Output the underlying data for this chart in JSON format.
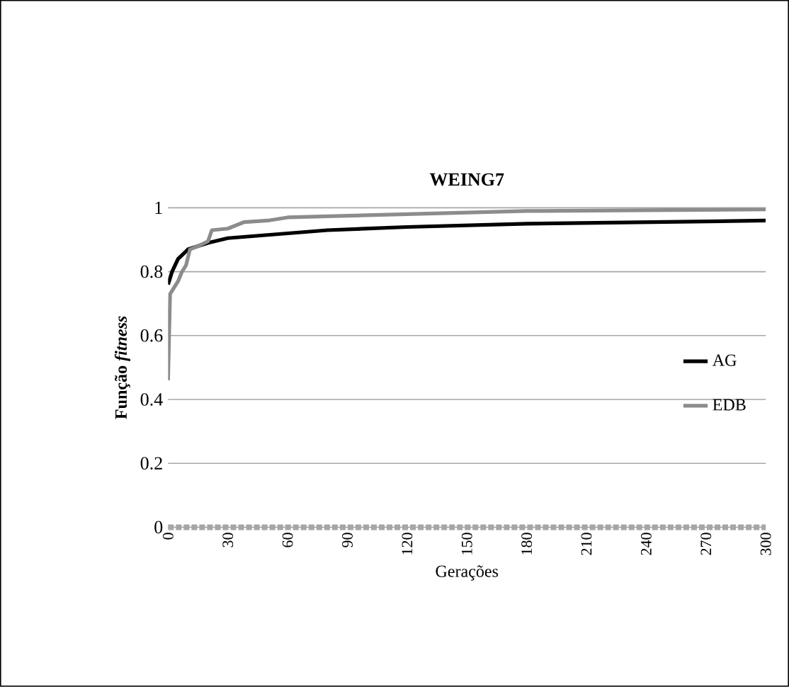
{
  "chart_data": {
    "type": "line",
    "title": "WEING7",
    "xlabel": "Gerações",
    "ylabel": "Função *fitness*",
    "xlim": [
      0,
      300
    ],
    "xticks": [
      0,
      30,
      60,
      90,
      120,
      150,
      180,
      210,
      240,
      270,
      300
    ],
    "ylim": [
      0,
      1
    ],
    "yticks": [
      0,
      0.2,
      0.4,
      0.6,
      0.8,
      1
    ],
    "grid": "y",
    "legend": "right",
    "marker": "none",
    "line_style": "solid",
    "series": [
      {
        "name": "AG",
        "color": "#000000",
        "x": [
          0,
          2,
          5,
          10,
          15,
          20,
          30,
          50,
          80,
          120,
          180,
          240,
          300
        ],
        "values": [
          0.76,
          0.8,
          0.84,
          0.87,
          0.88,
          0.89,
          0.905,
          0.915,
          0.93,
          0.94,
          0.95,
          0.955,
          0.96
        ]
      },
      {
        "name": "EDB",
        "color": "#8c8c8c",
        "x": [
          0,
          1,
          3,
          5,
          7,
          9,
          11,
          15,
          20,
          22,
          30,
          38,
          50,
          60,
          90,
          120,
          180,
          300
        ],
        "values": [
          0.46,
          0.73,
          0.75,
          0.77,
          0.8,
          0.82,
          0.87,
          0.88,
          0.895,
          0.93,
          0.935,
          0.955,
          0.96,
          0.97,
          0.975,
          0.98,
          0.99,
          0.995
        ]
      }
    ]
  }
}
